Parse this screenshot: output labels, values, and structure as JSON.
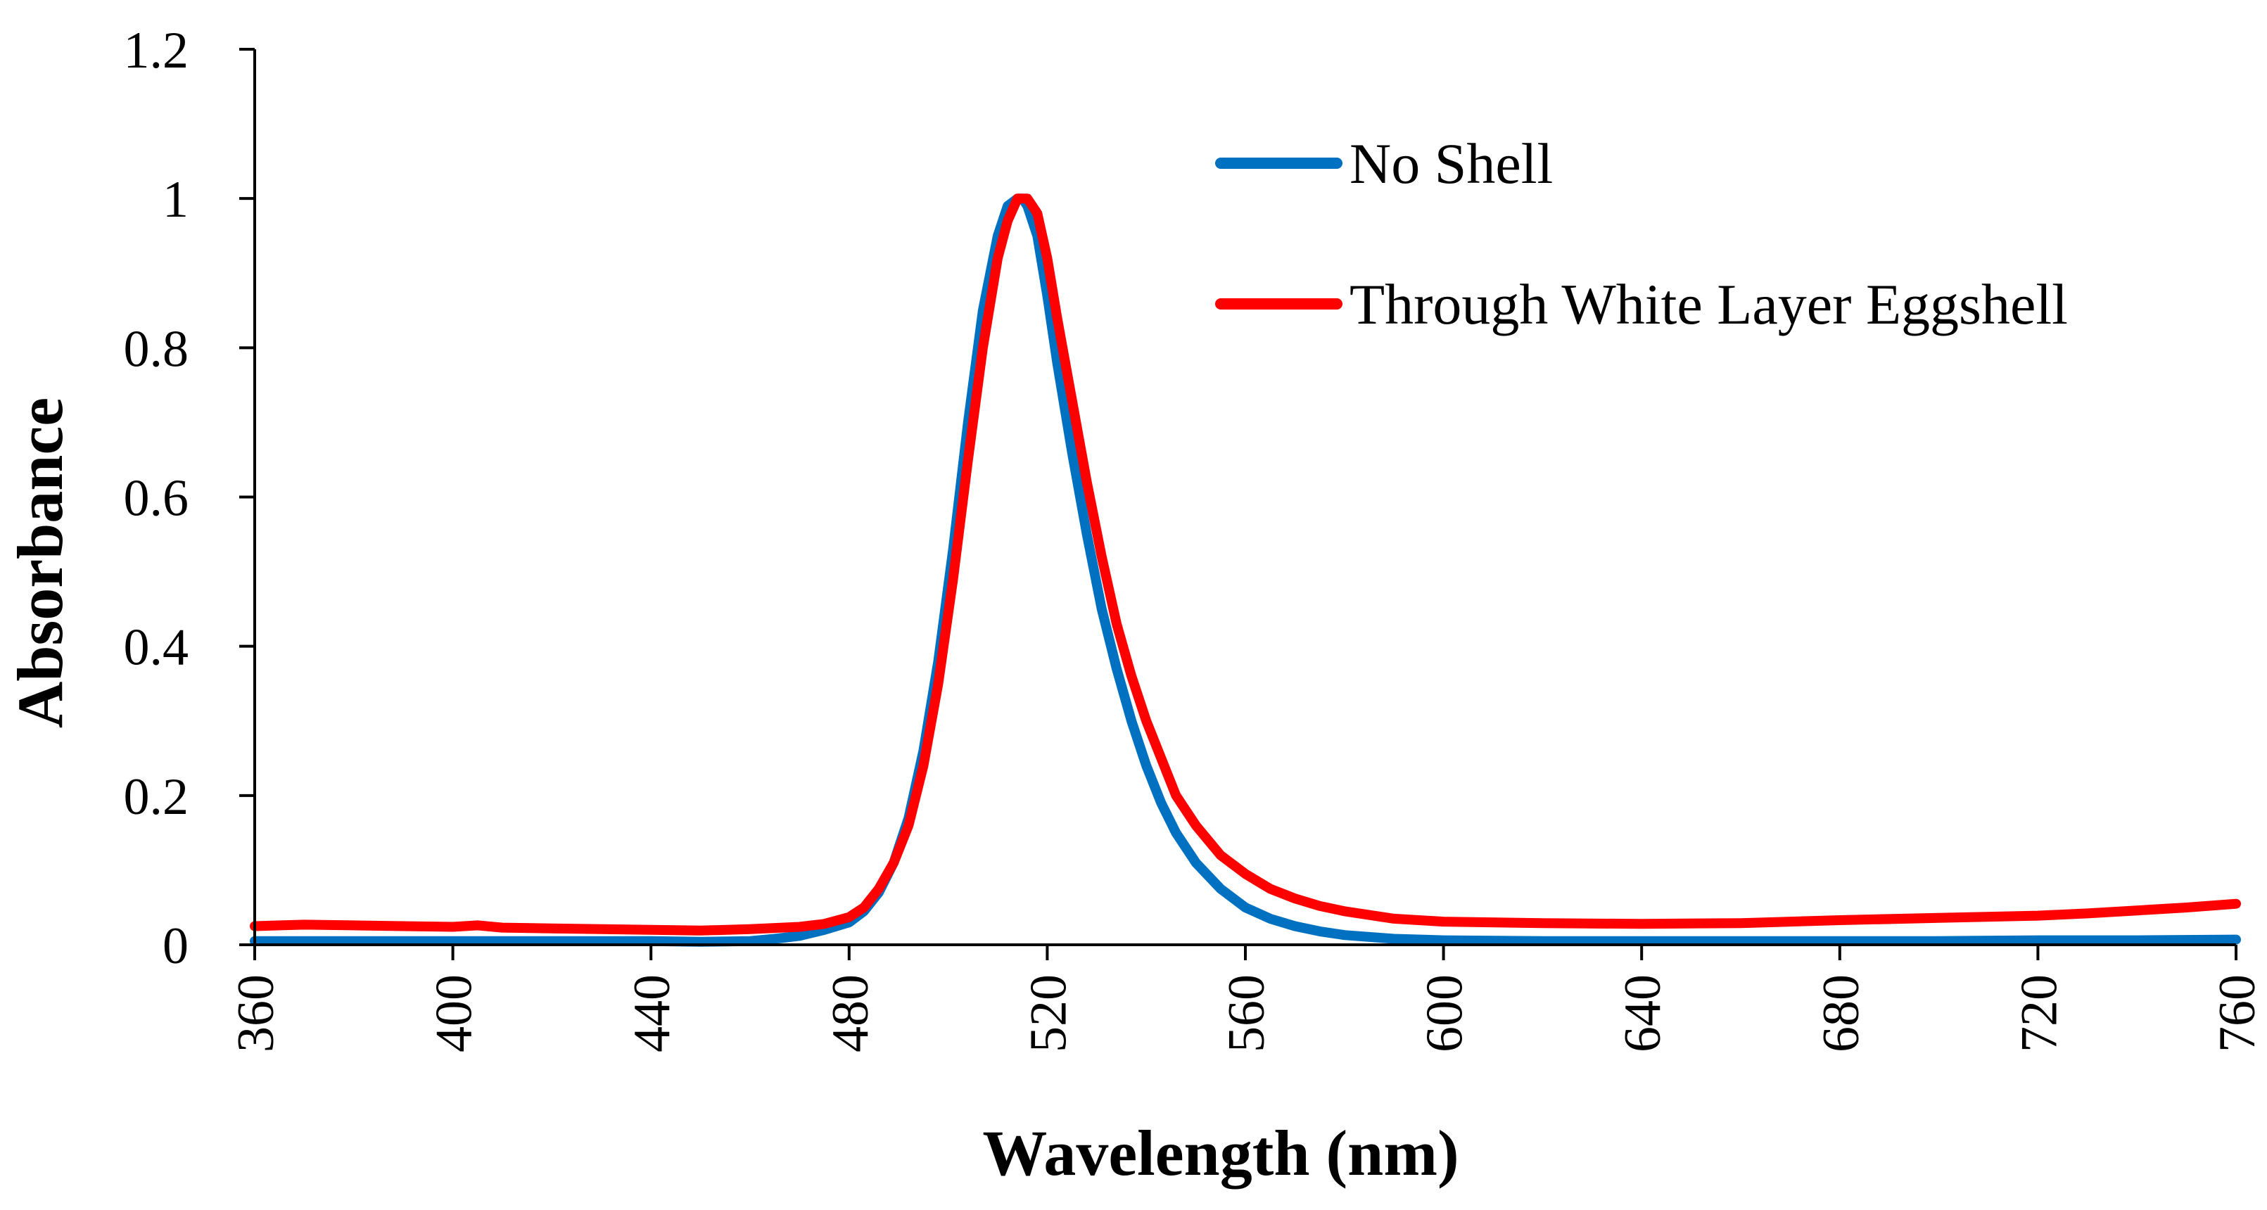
{
  "chart_data": {
    "type": "line",
    "xlabel": "Wavelength (nm)",
    "ylabel": "Absorbance",
    "xlim": [
      360,
      760
    ],
    "ylim": [
      0,
      1.2
    ],
    "x_ticks": [
      360,
      400,
      440,
      480,
      520,
      560,
      600,
      640,
      680,
      720,
      760
    ],
    "x_tick_labels": [
      "360",
      "400",
      "440",
      "480",
      "520",
      "560",
      "600",
      "640",
      "680",
      "720",
      "760"
    ],
    "y_ticks": [
      0,
      0.2,
      0.4,
      0.6,
      0.8,
      1,
      1.2
    ],
    "y_tick_labels": [
      "0",
      "0.2",
      "0.4",
      "0.6",
      "0.8",
      "1",
      "1.2"
    ],
    "grid": false,
    "legend_position": "top-right",
    "series": [
      {
        "name": "No Shell",
        "color": "#0070C0",
        "x": [
          360,
          380,
          400,
          420,
          440,
          450,
          460,
          465,
          470,
          475,
          480,
          483,
          486,
          489,
          492,
          495,
          498,
          501,
          504,
          507,
          510,
          512,
          514,
          515,
          516,
          518,
          520,
          522,
          525,
          528,
          531,
          534,
          537,
          540,
          543,
          546,
          550,
          555,
          560,
          565,
          570,
          575,
          580,
          590,
          600,
          620,
          640,
          660,
          680,
          700,
          720,
          740,
          760
        ],
        "y": [
          0.005,
          0.005,
          0.005,
          0.005,
          0.005,
          0.004,
          0.005,
          0.008,
          0.012,
          0.02,
          0.03,
          0.045,
          0.07,
          0.11,
          0.17,
          0.26,
          0.38,
          0.53,
          0.7,
          0.85,
          0.95,
          0.99,
          1.0,
          1.0,
          0.99,
          0.95,
          0.87,
          0.78,
          0.66,
          0.55,
          0.45,
          0.37,
          0.3,
          0.24,
          0.19,
          0.15,
          0.11,
          0.075,
          0.05,
          0.035,
          0.025,
          0.018,
          0.013,
          0.008,
          0.006,
          0.005,
          0.005,
          0.005,
          0.005,
          0.005,
          0.006,
          0.006,
          0.007
        ]
      },
      {
        "name": "Through White Layer Eggshell",
        "color": "#FF0000",
        "x": [
          360,
          370,
          380,
          390,
          400,
          405,
          410,
          420,
          430,
          440,
          450,
          460,
          470,
          475,
          480,
          483,
          486,
          489,
          492,
          495,
          498,
          501,
          504,
          507,
          510,
          512,
          514,
          516,
          518,
          520,
          522,
          525,
          528,
          531,
          534,
          537,
          540,
          543,
          546,
          550,
          555,
          560,
          565,
          570,
          575,
          580,
          590,
          600,
          620,
          640,
          660,
          680,
          700,
          720,
          730,
          740,
          750,
          760
        ],
        "y": [
          0.025,
          0.027,
          0.026,
          0.025,
          0.024,
          0.026,
          0.023,
          0.022,
          0.021,
          0.02,
          0.019,
          0.021,
          0.024,
          0.028,
          0.037,
          0.05,
          0.075,
          0.11,
          0.16,
          0.24,
          0.35,
          0.49,
          0.65,
          0.8,
          0.92,
          0.97,
          1.0,
          1.0,
          0.98,
          0.92,
          0.84,
          0.73,
          0.62,
          0.52,
          0.43,
          0.36,
          0.3,
          0.25,
          0.2,
          0.16,
          0.12,
          0.095,
          0.075,
          0.062,
          0.052,
          0.045,
          0.035,
          0.031,
          0.029,
          0.028,
          0.029,
          0.033,
          0.036,
          0.039,
          0.042,
          0.046,
          0.05,
          0.055
        ]
      }
    ]
  }
}
